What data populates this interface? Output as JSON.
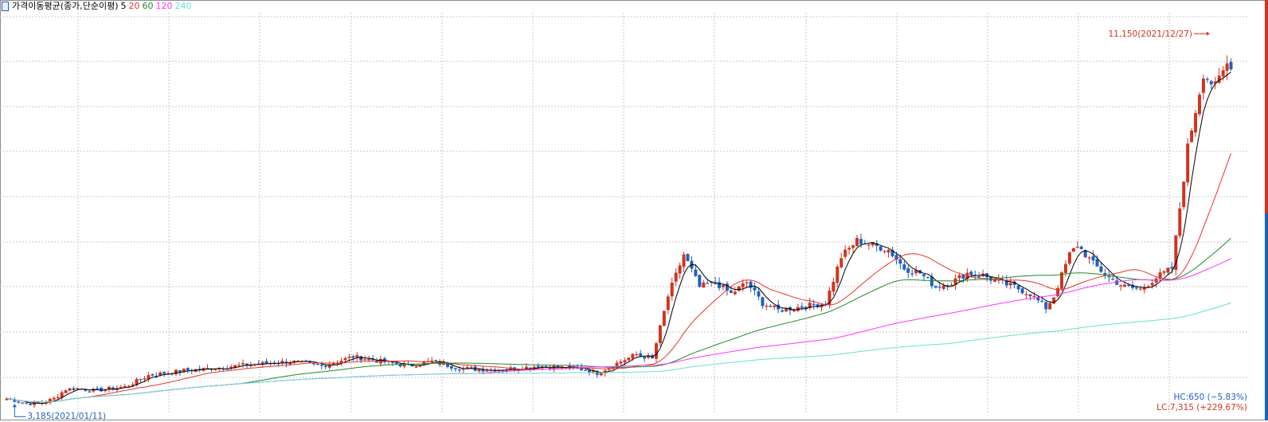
{
  "legend": {
    "title": "가격이동평균(종가,단순이평)",
    "ma": [
      {
        "period": "5",
        "color": "#000000"
      },
      {
        "period": "20",
        "color": "#e8332b"
      },
      {
        "period": "60",
        "color": "#1f8a2a"
      },
      {
        "period": "120",
        "color": "#ff33ff"
      },
      {
        "period": "240",
        "color": "#66e0d0"
      }
    ]
  },
  "annotations": {
    "high_label": "11,150(2021/12/27)",
    "low_label": "3,185(2021/01/11)",
    "hc": "HC:650 (−5.83%)",
    "lc": "LC:7,315 (+229.67%)"
  },
  "colors": {
    "up": "#d2321e",
    "down": "#1f5fbf",
    "grid": "#c8c8c8"
  },
  "chart_data": {
    "type": "candlestick",
    "title": "",
    "ylim": [
      3000,
      11600
    ],
    "grid": true,
    "anchors": [
      [
        0,
        3300
      ],
      [
        5,
        3200
      ],
      [
        8,
        3185
      ],
      [
        12,
        3300
      ],
      [
        15,
        3500
      ],
      [
        18,
        3520
      ],
      [
        22,
        3470
      ],
      [
        30,
        3550
      ],
      [
        36,
        3800
      ],
      [
        45,
        3900
      ],
      [
        52,
        3950
      ],
      [
        58,
        4000
      ],
      [
        65,
        4050
      ],
      [
        72,
        4100
      ],
      [
        80,
        4000
      ],
      [
        88,
        4200
      ],
      [
        95,
        4100
      ],
      [
        102,
        4000
      ],
      [
        108,
        4100
      ],
      [
        115,
        3950
      ],
      [
        122,
        3920
      ],
      [
        130,
        3950
      ],
      [
        135,
        4000
      ],
      [
        140,
        3970
      ],
      [
        145,
        3950
      ],
      [
        150,
        3850
      ],
      [
        156,
        4100
      ],
      [
        160,
        4250
      ],
      [
        164,
        4150
      ],
      [
        168,
        5500
      ],
      [
        172,
        6400
      ],
      [
        176,
        5700
      ],
      [
        180,
        5800
      ],
      [
        184,
        5550
      ],
      [
        188,
        5800
      ],
      [
        192,
        5350
      ],
      [
        196,
        5200
      ],
      [
        200,
        5250
      ],
      [
        204,
        5300
      ],
      [
        208,
        5350
      ],
      [
        212,
        6350
      ],
      [
        216,
        6700
      ],
      [
        220,
        6600
      ],
      [
        224,
        6500
      ],
      [
        228,
        6100
      ],
      [
        232,
        6000
      ],
      [
        236,
        5700
      ],
      [
        240,
        5800
      ],
      [
        244,
        6000
      ],
      [
        248,
        5950
      ],
      [
        252,
        5800
      ],
      [
        256,
        5700
      ],
      [
        260,
        5550
      ],
      [
        264,
        5250
      ],
      [
        266,
        5500
      ],
      [
        270,
        6400
      ],
      [
        272,
        6600
      ],
      [
        276,
        6200
      ],
      [
        280,
        5900
      ],
      [
        284,
        5700
      ],
      [
        288,
        5650
      ],
      [
        292,
        5900
      ],
      [
        296,
        6100
      ],
      [
        300,
        8700
      ],
      [
        304,
        10300
      ],
      [
        307,
        10000
      ],
      [
        310,
        10500
      ]
    ],
    "ma_periods": [
      5,
      20,
      60,
      120,
      240
    ],
    "high": {
      "value": 11150,
      "date": "2021/12/27"
    },
    "low": {
      "value": 3185,
      "date": "2021/01/11"
    }
  }
}
